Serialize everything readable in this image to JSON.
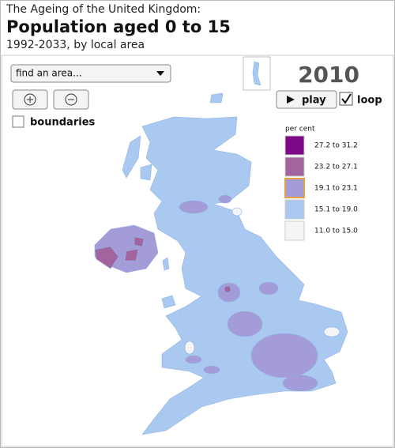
{
  "header": {
    "kicker": "The Ageing of the United Kingdom:",
    "title": "Population aged 0 to 15",
    "subtitle": "1992-2033, by local area"
  },
  "controls": {
    "search_placeholder": "find an area...",
    "boundaries": "boundaries",
    "year": 2010,
    "play": "play",
    "loop": "loop"
  },
  "legend": {
    "title": "per cent",
    "items": [
      {
        "label": "27.2 to 31.2",
        "color": "#7d0a84"
      },
      {
        "label": "23.2 to 27.1",
        "color": "#a2649e"
      },
      {
        "label": "19.1 to 23.1",
        "color": "#a39cd8",
        "highlight": true
      },
      {
        "label": "15.1 to 19.0",
        "color": "#a9c9f1"
      },
      {
        "label": "11.0 to 15.0",
        "color": "#f5f5f7"
      }
    ]
  }
}
